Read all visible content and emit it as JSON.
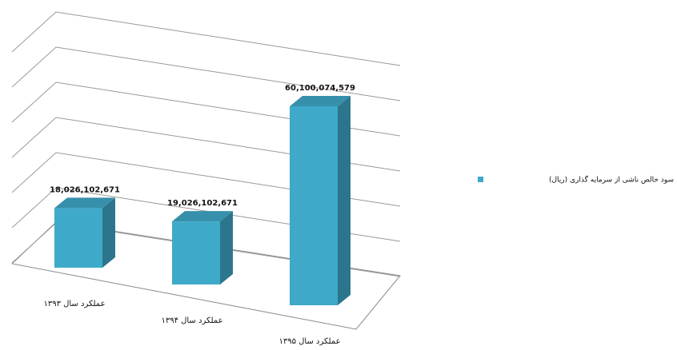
{
  "chart_data": {
    "type": "bar3d",
    "categories": [
      "عملکرد سال ۱۳۹۳",
      "عملکرد سال ۱۳۹۴",
      "عملکرد سال ۱۳۹۵"
    ],
    "series": [
      {
        "name": "سود خالص ناشی از سرمایه گذاری (ریال)",
        "color": "#3fa9c9",
        "values": [
          18026102671,
          19026102671,
          60100074579
        ],
        "value_labels": [
          "18,026,102,671",
          "19,026,102,671",
          "60,100,074,579"
        ]
      }
    ],
    "ylim": [
      0,
      70000000000
    ],
    "grid": true,
    "legend": "right"
  }
}
